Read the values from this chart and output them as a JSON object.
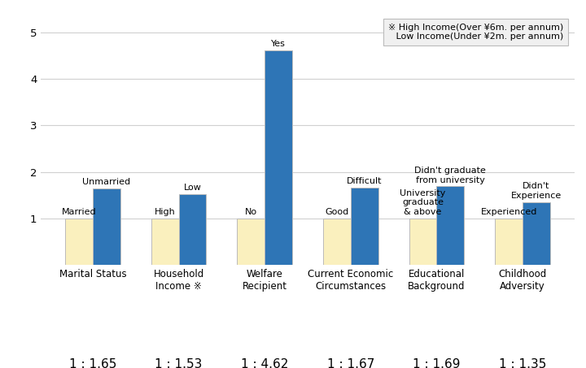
{
  "groups": [
    {
      "label": "Marital Status",
      "ratio": "1 : 1.65",
      "bar1_label": "Married",
      "bar2_label": "Unmarried",
      "bar1_value": 1.0,
      "bar2_value": 1.65
    },
    {
      "label": "Household\nIncome ※",
      "ratio": "1 : 1.53",
      "bar1_label": "High",
      "bar2_label": "Low",
      "bar1_value": 1.0,
      "bar2_value": 1.53
    },
    {
      "label": "Welfare\nRecipient",
      "ratio": "1 : 4.62",
      "bar1_label": "No",
      "bar2_label": "Yes",
      "bar1_value": 1.0,
      "bar2_value": 4.62
    },
    {
      "label": "Current Economic\nCircumstances",
      "ratio": "1 : 1.67",
      "bar1_label": "Good",
      "bar2_label": "Difficult",
      "bar1_value": 1.0,
      "bar2_value": 1.67
    },
    {
      "label": "Educational\nBackground",
      "ratio": "1 : 1.69",
      "bar1_label": "University\ngraduate\n& above",
      "bar2_label": "Didn't graduate\nfrom university",
      "bar1_value": 1.0,
      "bar2_value": 1.69
    },
    {
      "label": "Childhood\nAdversity",
      "ratio": "1 : 1.35",
      "bar1_label": "Experienced",
      "bar2_label": "Didn't\nExperience",
      "bar1_value": 1.0,
      "bar2_value": 1.35
    }
  ],
  "bar1_color": "#FAF0BE",
  "bar2_color": "#2E75B6",
  "ylim": [
    0,
    5.3
  ],
  "yticks": [
    1,
    2,
    3,
    4,
    5
  ],
  "bar_width": 0.32,
  "legend_line1": "※ High Income(Over ¥6m. per annum)",
  "legend_line2": "Low Income(Under ¥2m. per annum)",
  "background_color": "#ffffff",
  "grid_color": "#d0d0d0",
  "ratio_fontsize": 11,
  "label_fontsize": 8.5,
  "bar_label_fontsize": 8,
  "tick_fontsize": 9.5,
  "legend_fontsize": 8
}
